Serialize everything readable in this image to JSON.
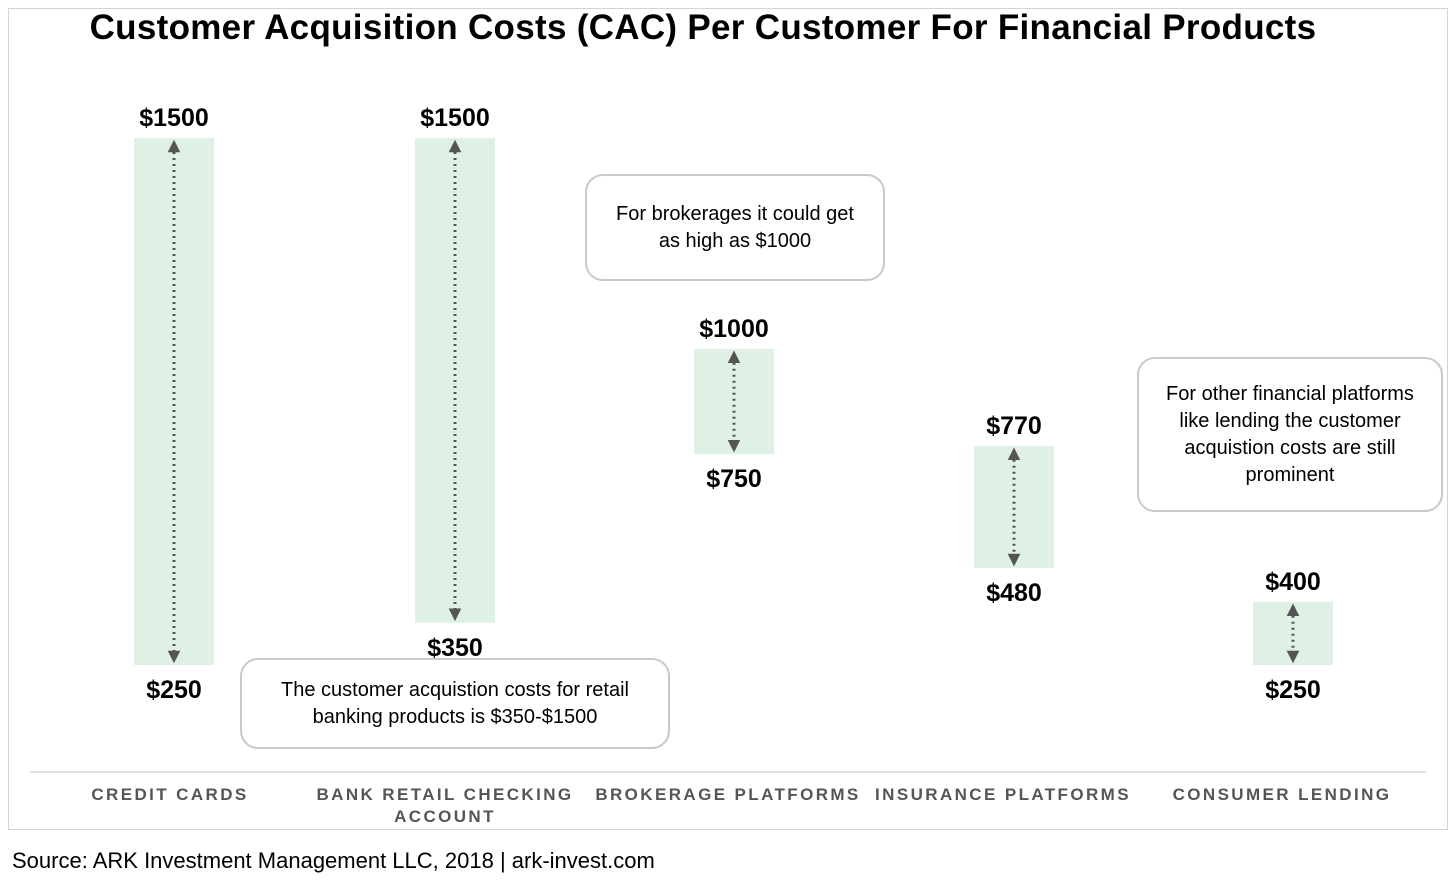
{
  "title": "Customer Acquisition Costs (CAC) Per Customer For Financial Products",
  "source": "Source: ARK Investment Management LLC, 2018  |  ark-invest.com",
  "colors": {
    "range_fill": "#dff0e4",
    "arrow": "#555555",
    "axis_label": "#555555",
    "callout_border": "#c9c9c9"
  },
  "callouts": {
    "brokerage": "For brokerages it could get as high as $1000",
    "retail_banking": "The customer acquistion costs for retail banking products is $350-$1500",
    "lending": "For other financial platforms like lending the customer acquistion costs are still prominent"
  },
  "chart_data": {
    "type": "range",
    "title": "Customer Acquisition Costs (CAC) Per Customer For Financial Products",
    "categories": [
      "CREDIT CARDS",
      "BANK RETAIL CHECKING ACCOUNT",
      "BROKERAGE PLATFORMS",
      "INSURANCE PLATFORMS",
      "CONSUMER LENDING"
    ],
    "ranges": [
      {
        "category": "CREDIT CARDS",
        "low": 250,
        "high": 1500,
        "low_label": "$250",
        "high_label": "$1500"
      },
      {
        "category": "BANK RETAIL CHECKING ACCOUNT",
        "low": 350,
        "high": 1500,
        "low_label": "$350",
        "high_label": "$1500"
      },
      {
        "category": "BROKERAGE PLATFORMS",
        "low": 750,
        "high": 1000,
        "low_label": "$750",
        "high_label": "$1000"
      },
      {
        "category": "INSURANCE PLATFORMS",
        "low": 480,
        "high": 770,
        "low_label": "$480",
        "high_label": "$770"
      },
      {
        "category": "CONSUMER LENDING",
        "low": 250,
        "high": 400,
        "low_label": "$250",
        "high_label": "$400"
      }
    ],
    "xlabel": "",
    "ylabel": "",
    "ylim": [
      0,
      1500
    ],
    "grid": false,
    "legend": "none"
  }
}
